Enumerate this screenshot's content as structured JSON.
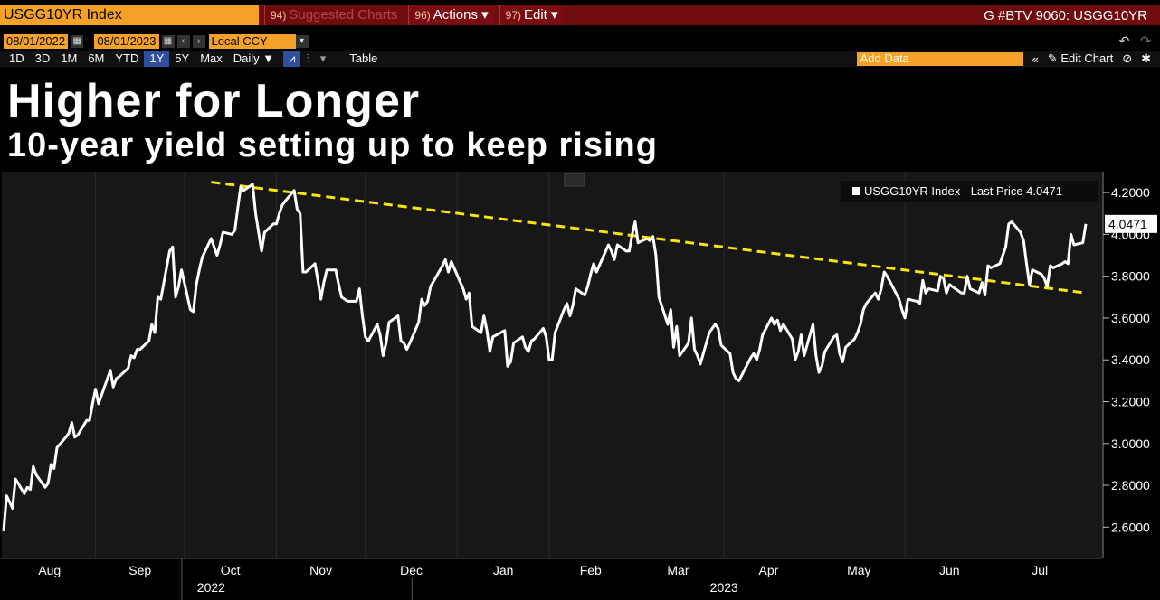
{
  "toolbar": {
    "ticker": "USGG10YR Index",
    "suggested_num": "94)",
    "suggested_label": "Suggested Charts",
    "actions_num": "96)",
    "actions_label": "Actions ▾",
    "edit_num": "97)",
    "edit_label": "Edit ▾",
    "right_title": "G #BTV 9060: USGG10YR",
    "start_date": "08/01/2022",
    "end_date": "08/01/2023",
    "currency": "Local CCY",
    "ranges": [
      "1D",
      "3D",
      "1M",
      "6M",
      "YTD",
      "1Y",
      "5Y",
      "Max"
    ],
    "active_range": "1Y",
    "frequency": "Daily ▼",
    "table_label": "Table",
    "add_data_placeholder": "Add Data",
    "edit_chart_label": "Edit Chart"
  },
  "headline": {
    "title": "Higher for Longer",
    "subtitle": "10-year yield setting up to keep rising"
  },
  "chart_data": {
    "type": "line",
    "legend_text": "USGG10YR Index - Last Price 4.0471",
    "legend_placement": "top-right",
    "last_price_label": "4.0471",
    "ylim": [
      2.45,
      4.3
    ],
    "yticks": [
      "4.2000",
      "4.0000",
      "3.8000",
      "3.6000",
      "3.4000",
      "3.2000",
      "3.0000",
      "2.8000",
      "2.6000"
    ],
    "month_labels": [
      "Aug",
      "Sep",
      "Oct",
      "Nov",
      "Dec",
      "Jan",
      "Feb",
      "Mar",
      "Apr",
      "May",
      "Jun",
      "Jul"
    ],
    "year_labels": [
      "2022",
      "2023"
    ],
    "series": [
      {
        "color": "#ffffff",
        "points": [
          [
            "2022-08-01",
            2.58
          ],
          [
            "2022-08-02",
            2.75
          ],
          [
            "2022-08-03",
            2.72
          ],
          [
            "2022-08-04",
            2.69
          ],
          [
            "2022-08-05",
            2.83
          ],
          [
            "2022-08-08",
            2.76
          ],
          [
            "2022-08-09",
            2.79
          ],
          [
            "2022-08-10",
            2.78
          ],
          [
            "2022-08-11",
            2.89
          ],
          [
            "2022-08-12",
            2.85
          ],
          [
            "2022-08-15",
            2.79
          ],
          [
            "2022-08-16",
            2.81
          ],
          [
            "2022-08-17",
            2.9
          ],
          [
            "2022-08-18",
            2.88
          ],
          [
            "2022-08-19",
            2.98
          ],
          [
            "2022-08-22",
            3.03
          ],
          [
            "2022-08-23",
            3.05
          ],
          [
            "2022-08-24",
            3.1
          ],
          [
            "2022-08-25",
            3.03
          ],
          [
            "2022-08-26",
            3.04
          ],
          [
            "2022-08-29",
            3.11
          ],
          [
            "2022-08-30",
            3.11
          ],
          [
            "2022-08-31",
            3.19
          ],
          [
            "2022-09-01",
            3.26
          ],
          [
            "2022-09-02",
            3.19
          ],
          [
            "2022-09-06",
            3.35
          ],
          [
            "2022-09-07",
            3.27
          ],
          [
            "2022-09-08",
            3.31
          ],
          [
            "2022-09-09",
            3.32
          ],
          [
            "2022-09-12",
            3.36
          ],
          [
            "2022-09-13",
            3.42
          ],
          [
            "2022-09-14",
            3.41
          ],
          [
            "2022-09-15",
            3.45
          ],
          [
            "2022-09-16",
            3.45
          ],
          [
            "2022-09-19",
            3.49
          ],
          [
            "2022-09-20",
            3.57
          ],
          [
            "2022-09-21",
            3.53
          ],
          [
            "2022-09-22",
            3.7
          ],
          [
            "2022-09-23",
            3.69
          ],
          [
            "2022-09-26",
            3.92
          ],
          [
            "2022-09-27",
            3.94
          ],
          [
            "2022-09-28",
            3.7
          ],
          [
            "2022-09-29",
            3.75
          ],
          [
            "2022-09-30",
            3.83
          ],
          [
            "2022-10-03",
            3.64
          ],
          [
            "2022-10-04",
            3.63
          ],
          [
            "2022-10-05",
            3.76
          ],
          [
            "2022-10-06",
            3.83
          ],
          [
            "2022-10-07",
            3.89
          ],
          [
            "2022-10-10",
            3.98
          ],
          [
            "2022-10-11",
            3.94
          ],
          [
            "2022-10-12",
            3.9
          ],
          [
            "2022-10-13",
            3.95
          ],
          [
            "2022-10-14",
            4.01
          ],
          [
            "2022-10-17",
            4.0
          ],
          [
            "2022-10-18",
            4.02
          ],
          [
            "2022-10-19",
            4.13
          ],
          [
            "2022-10-20",
            4.23
          ],
          [
            "2022-10-21",
            4.21
          ],
          [
            "2022-10-24",
            4.24
          ],
          [
            "2022-10-25",
            4.1
          ],
          [
            "2022-10-26",
            4.01
          ],
          [
            "2022-10-27",
            3.92
          ],
          [
            "2022-10-28",
            4.01
          ],
          [
            "2022-10-31",
            4.05
          ],
          [
            "2022-11-01",
            4.05
          ],
          [
            "2022-11-02",
            4.1
          ],
          [
            "2022-11-03",
            4.14
          ],
          [
            "2022-11-04",
            4.16
          ],
          [
            "2022-11-07",
            4.21
          ],
          [
            "2022-11-08",
            4.12
          ],
          [
            "2022-11-09",
            4.1
          ],
          [
            "2022-11-10",
            3.82
          ],
          [
            "2022-11-11",
            3.82
          ],
          [
            "2022-11-14",
            3.86
          ],
          [
            "2022-11-15",
            3.78
          ],
          [
            "2022-11-16",
            3.69
          ],
          [
            "2022-11-17",
            3.77
          ],
          [
            "2022-11-18",
            3.83
          ],
          [
            "2022-11-21",
            3.83
          ],
          [
            "2022-11-22",
            3.76
          ],
          [
            "2022-11-23",
            3.7
          ],
          [
            "2022-11-25",
            3.68
          ],
          [
            "2022-11-28",
            3.68
          ],
          [
            "2022-11-29",
            3.74
          ],
          [
            "2022-11-30",
            3.61
          ],
          [
            "2022-12-01",
            3.51
          ],
          [
            "2022-12-02",
            3.49
          ],
          [
            "2022-12-05",
            3.57
          ],
          [
            "2022-12-06",
            3.52
          ],
          [
            "2022-12-07",
            3.42
          ],
          [
            "2022-12-08",
            3.48
          ],
          [
            "2022-12-09",
            3.58
          ],
          [
            "2022-12-12",
            3.61
          ],
          [
            "2022-12-13",
            3.49
          ],
          [
            "2022-12-14",
            3.48
          ],
          [
            "2022-12-15",
            3.45
          ],
          [
            "2022-12-16",
            3.48
          ],
          [
            "2022-12-19",
            3.58
          ],
          [
            "2022-12-20",
            3.69
          ],
          [
            "2022-12-21",
            3.66
          ],
          [
            "2022-12-22",
            3.68
          ],
          [
            "2022-12-23",
            3.75
          ],
          [
            "2022-12-27",
            3.85
          ],
          [
            "2022-12-28",
            3.88
          ],
          [
            "2022-12-29",
            3.82
          ],
          [
            "2022-12-30",
            3.87
          ],
          [
            "2023-01-03",
            3.74
          ],
          [
            "2023-01-04",
            3.69
          ],
          [
            "2023-01-05",
            3.72
          ],
          [
            "2023-01-06",
            3.56
          ],
          [
            "2023-01-09",
            3.53
          ],
          [
            "2023-01-10",
            3.61
          ],
          [
            "2023-01-11",
            3.54
          ],
          [
            "2023-01-12",
            3.44
          ],
          [
            "2023-01-13",
            3.51
          ],
          [
            "2023-01-17",
            3.54
          ],
          [
            "2023-01-18",
            3.37
          ],
          [
            "2023-01-19",
            3.39
          ],
          [
            "2023-01-20",
            3.48
          ],
          [
            "2023-01-23",
            3.51
          ],
          [
            "2023-01-24",
            3.46
          ],
          [
            "2023-01-25",
            3.44
          ],
          [
            "2023-01-26",
            3.49
          ],
          [
            "2023-01-27",
            3.5
          ],
          [
            "2023-01-30",
            3.55
          ],
          [
            "2023-01-31",
            3.51
          ],
          [
            "2023-02-01",
            3.4
          ],
          [
            "2023-02-02",
            3.4
          ],
          [
            "2023-02-03",
            3.53
          ],
          [
            "2023-02-06",
            3.64
          ],
          [
            "2023-02-07",
            3.67
          ],
          [
            "2023-02-08",
            3.61
          ],
          [
            "2023-02-09",
            3.66
          ],
          [
            "2023-02-10",
            3.74
          ],
          [
            "2023-02-13",
            3.71
          ],
          [
            "2023-02-14",
            3.75
          ],
          [
            "2023-02-15",
            3.81
          ],
          [
            "2023-02-16",
            3.86
          ],
          [
            "2023-02-17",
            3.82
          ],
          [
            "2023-02-21",
            3.95
          ],
          [
            "2023-02-22",
            3.92
          ],
          [
            "2023-02-23",
            3.88
          ],
          [
            "2023-02-24",
            3.95
          ],
          [
            "2023-02-27",
            3.92
          ],
          [
            "2023-02-28",
            3.92
          ],
          [
            "2023-03-01",
            4.0
          ],
          [
            "2023-03-02",
            4.06
          ],
          [
            "2023-03-03",
            3.96
          ],
          [
            "2023-03-06",
            3.98
          ],
          [
            "2023-03-07",
            3.97
          ],
          [
            "2023-03-08",
            3.99
          ],
          [
            "2023-03-09",
            3.9
          ],
          [
            "2023-03-10",
            3.7
          ],
          [
            "2023-03-13",
            3.57
          ],
          [
            "2023-03-14",
            3.64
          ],
          [
            "2023-03-15",
            3.46
          ],
          [
            "2023-03-16",
            3.56
          ],
          [
            "2023-03-17",
            3.42
          ],
          [
            "2023-03-20",
            3.48
          ],
          [
            "2023-03-21",
            3.6
          ],
          [
            "2023-03-22",
            3.45
          ],
          [
            "2023-03-23",
            3.42
          ],
          [
            "2023-03-24",
            3.38
          ],
          [
            "2023-03-27",
            3.53
          ],
          [
            "2023-03-28",
            3.55
          ],
          [
            "2023-03-29",
            3.57
          ],
          [
            "2023-03-30",
            3.55
          ],
          [
            "2023-03-31",
            3.47
          ],
          [
            "2023-04-03",
            3.43
          ],
          [
            "2023-04-04",
            3.34
          ],
          [
            "2023-04-05",
            3.31
          ],
          [
            "2023-04-06",
            3.3
          ],
          [
            "2023-04-10",
            3.41
          ],
          [
            "2023-04-11",
            3.43
          ],
          [
            "2023-04-12",
            3.4
          ],
          [
            "2023-04-13",
            3.45
          ],
          [
            "2023-04-14",
            3.52
          ],
          [
            "2023-04-17",
            3.6
          ],
          [
            "2023-04-18",
            3.57
          ],
          [
            "2023-04-19",
            3.59
          ],
          [
            "2023-04-20",
            3.54
          ],
          [
            "2023-04-21",
            3.57
          ],
          [
            "2023-04-24",
            3.5
          ],
          [
            "2023-04-25",
            3.4
          ],
          [
            "2023-04-26",
            3.44
          ],
          [
            "2023-04-27",
            3.52
          ],
          [
            "2023-04-28",
            3.42
          ],
          [
            "2023-05-01",
            3.57
          ],
          [
            "2023-05-02",
            3.42
          ],
          [
            "2023-05-03",
            3.34
          ],
          [
            "2023-05-04",
            3.37
          ],
          [
            "2023-05-05",
            3.44
          ],
          [
            "2023-05-08",
            3.51
          ],
          [
            "2023-05-09",
            3.52
          ],
          [
            "2023-05-10",
            3.43
          ],
          [
            "2023-05-11",
            3.39
          ],
          [
            "2023-05-12",
            3.46
          ],
          [
            "2023-05-15",
            3.5
          ],
          [
            "2023-05-16",
            3.53
          ],
          [
            "2023-05-17",
            3.57
          ],
          [
            "2023-05-18",
            3.64
          ],
          [
            "2023-05-19",
            3.67
          ],
          [
            "2023-05-22",
            3.72
          ],
          [
            "2023-05-23",
            3.69
          ],
          [
            "2023-05-24",
            3.74
          ],
          [
            "2023-05-25",
            3.82
          ],
          [
            "2023-05-26",
            3.8
          ],
          [
            "2023-05-30",
            3.69
          ],
          [
            "2023-05-31",
            3.64
          ],
          [
            "2023-06-01",
            3.6
          ],
          [
            "2023-06-02",
            3.69
          ],
          [
            "2023-06-05",
            3.68
          ],
          [
            "2023-06-06",
            3.67
          ],
          [
            "2023-06-07",
            3.78
          ],
          [
            "2023-06-08",
            3.72
          ],
          [
            "2023-06-09",
            3.74
          ],
          [
            "2023-06-12",
            3.73
          ],
          [
            "2023-06-13",
            3.8
          ],
          [
            "2023-06-14",
            3.79
          ],
          [
            "2023-06-15",
            3.72
          ],
          [
            "2023-06-16",
            3.76
          ],
          [
            "2023-06-20",
            3.72
          ],
          [
            "2023-06-21",
            3.72
          ],
          [
            "2023-06-22",
            3.8
          ],
          [
            "2023-06-23",
            3.74
          ],
          [
            "2023-06-26",
            3.72
          ],
          [
            "2023-06-27",
            3.77
          ],
          [
            "2023-06-28",
            3.71
          ],
          [
            "2023-06-29",
            3.85
          ],
          [
            "2023-06-30",
            3.84
          ],
          [
            "2023-07-03",
            3.86
          ],
          [
            "2023-07-05",
            3.94
          ],
          [
            "2023-07-06",
            4.05
          ],
          [
            "2023-07-07",
            4.06
          ],
          [
            "2023-07-10",
            4.01
          ],
          [
            "2023-07-11",
            3.97
          ],
          [
            "2023-07-12",
            3.86
          ],
          [
            "2023-07-13",
            3.76
          ],
          [
            "2023-07-14",
            3.83
          ],
          [
            "2023-07-17",
            3.81
          ],
          [
            "2023-07-18",
            3.79
          ],
          [
            "2023-07-19",
            3.75
          ],
          [
            "2023-07-20",
            3.85
          ],
          [
            "2023-07-21",
            3.84
          ],
          [
            "2023-07-24",
            3.86
          ],
          [
            "2023-07-25",
            3.87
          ],
          [
            "2023-07-26",
            3.86
          ],
          [
            "2023-07-27",
            4.0
          ],
          [
            "2023-07-28",
            3.95
          ],
          [
            "2023-07-31",
            3.96
          ],
          [
            "2023-08-01",
            4.05
          ]
        ]
      }
    ],
    "trendline": {
      "color": "#f5e60a",
      "style": "dashed",
      "points": [
        [
          "2022-10-10",
          4.25
        ],
        [
          "2023-08-01",
          3.72
        ]
      ]
    }
  }
}
